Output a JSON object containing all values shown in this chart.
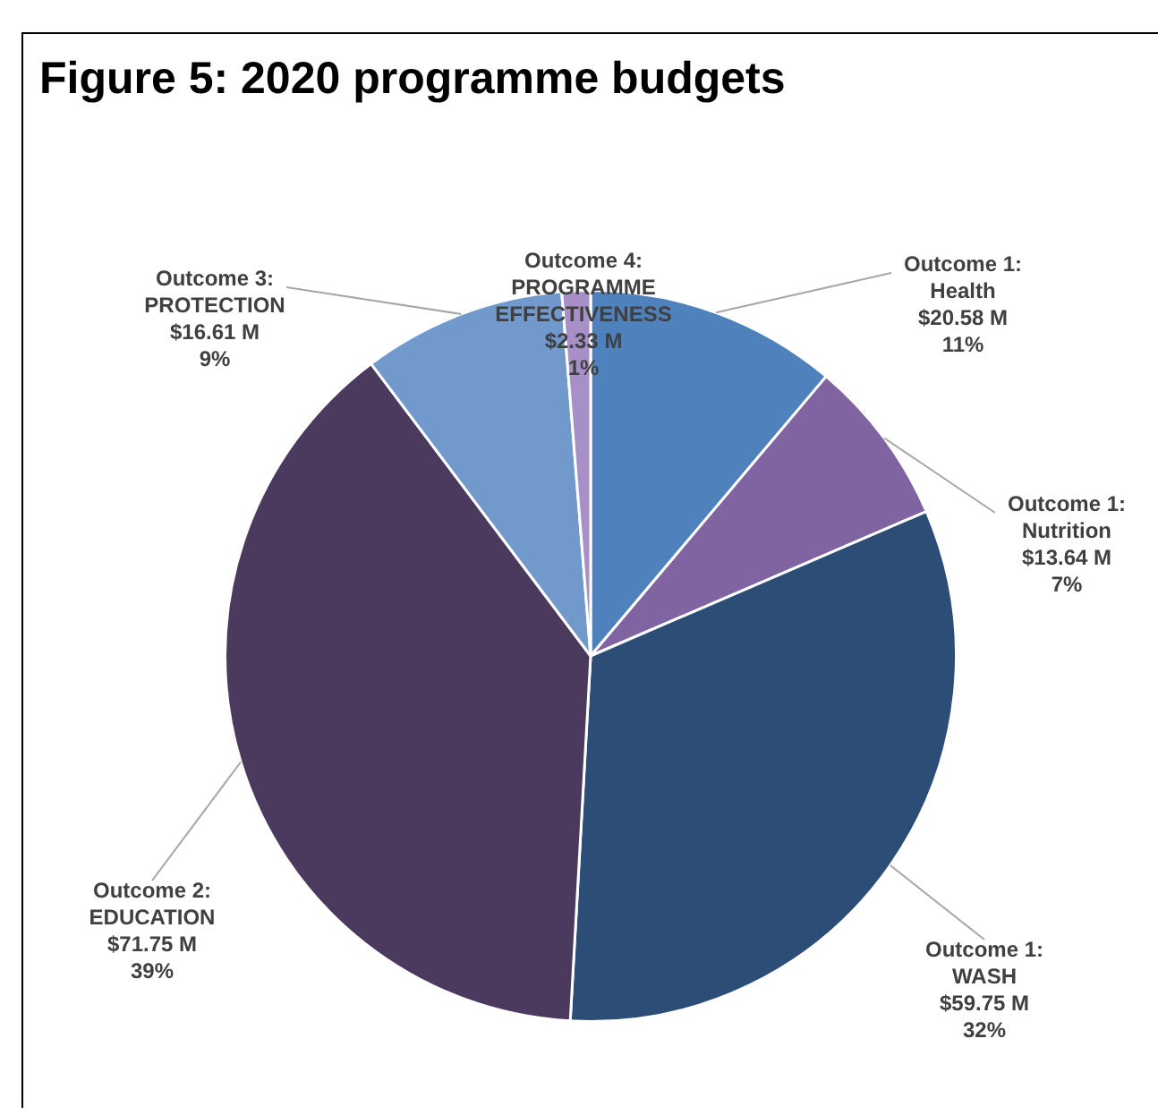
{
  "chart_data": {
    "type": "pie",
    "title": "Figure 5: 2020 programme budgets",
    "categories": [
      "Outcome 1: Health",
      "Outcome 1: Nutrition",
      "Outcome 1: WASH",
      "Outcome 2: EDUCATION",
      "Outcome 3: PROTECTION",
      "Outcome 4: PROGRAMME EFFECTIVENESS"
    ],
    "values": [
      20.58,
      13.64,
      59.75,
      71.75,
      16.61,
      2.33
    ],
    "colors": [
      "#4f81bd",
      "#8064a2",
      "#2c4d75",
      "#4b3a5e",
      "#7299cc",
      "#a88fc8"
    ],
    "value_labels": [
      "$20.58 M\n11%",
      "$13.64 M\n7%",
      "$59.75 M\n32%",
      "$71.75 M\n39%",
      "$16.61 M\n9%",
      "$2.33 M\n1%"
    ],
    "legend": false
  }
}
